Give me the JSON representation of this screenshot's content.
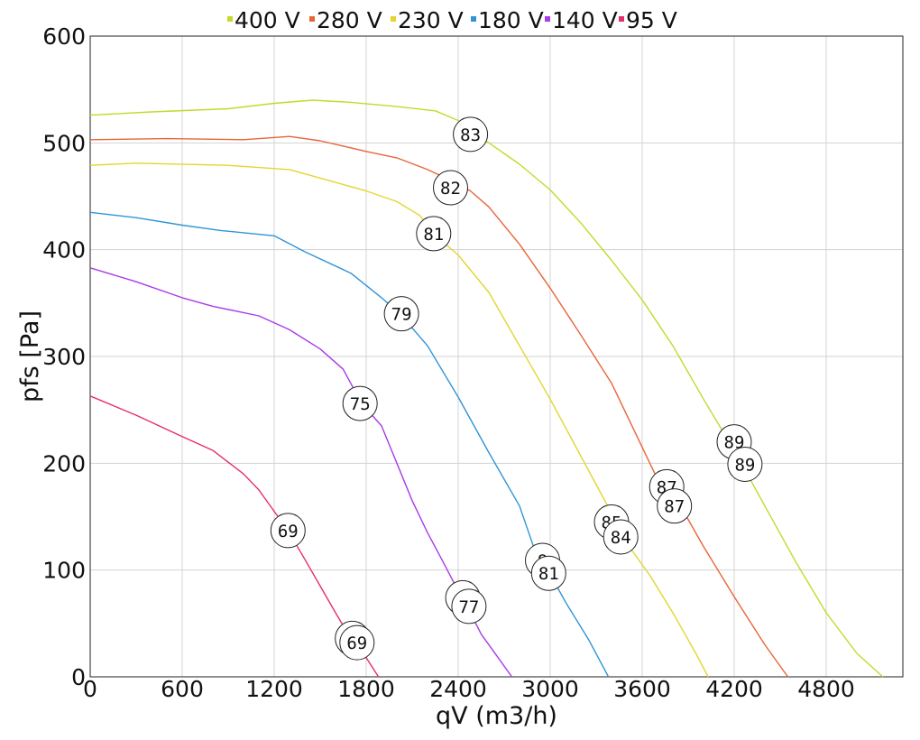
{
  "chart_data": {
    "type": "line",
    "title": "",
    "xlabel": "qV (m3/h)",
    "ylabel": "pfs [Pa]",
    "xlim": [
      0,
      5300
    ],
    "ylim": [
      0,
      600
    ],
    "x_ticks": [
      0,
      600,
      1200,
      1800,
      2400,
      3000,
      3600,
      4200,
      4800
    ],
    "y_ticks": [
      0,
      100,
      200,
      300,
      400,
      500,
      600
    ],
    "grid": true,
    "legend_position": "top",
    "series": [
      {
        "name": "400 V",
        "color": "#c5d92a",
        "points": [
          [
            0,
            526
          ],
          [
            400,
            529
          ],
          [
            900,
            532
          ],
          [
            1200,
            537
          ],
          [
            1450,
            540
          ],
          [
            1700,
            538
          ],
          [
            2000,
            534
          ],
          [
            2250,
            530
          ],
          [
            2400,
            521
          ],
          [
            2500,
            510
          ],
          [
            2600,
            500
          ],
          [
            2800,
            480
          ],
          [
            3000,
            456
          ],
          [
            3200,
            425
          ],
          [
            3400,
            390
          ],
          [
            3600,
            353
          ],
          [
            3800,
            310
          ],
          [
            4000,
            260
          ],
          [
            4200,
            212
          ],
          [
            4400,
            160
          ],
          [
            4600,
            108
          ],
          [
            4800,
            60
          ],
          [
            5000,
            22
          ],
          [
            5170,
            0
          ]
        ],
        "labels": [
          [
            2480,
            508,
            "83"
          ],
          [
            4200,
            220,
            "89"
          ],
          [
            4270,
            199,
            "89"
          ]
        ]
      },
      {
        "name": "280 V",
        "color": "#e8653a",
        "points": [
          [
            0,
            503
          ],
          [
            500,
            504
          ],
          [
            1000,
            503
          ],
          [
            1300,
            506
          ],
          [
            1500,
            502
          ],
          [
            1800,
            492
          ],
          [
            2000,
            486
          ],
          [
            2200,
            475
          ],
          [
            2350,
            465
          ],
          [
            2480,
            455
          ],
          [
            2600,
            440
          ],
          [
            2800,
            405
          ],
          [
            3000,
            364
          ],
          [
            3200,
            320
          ],
          [
            3400,
            275
          ],
          [
            3550,
            230
          ],
          [
            3700,
            185
          ],
          [
            3850,
            160
          ],
          [
            4000,
            122
          ],
          [
            4200,
            75
          ],
          [
            4400,
            30
          ],
          [
            4550,
            0
          ]
        ],
        "labels": [
          [
            2350,
            458,
            "82"
          ],
          [
            3760,
            178,
            "87"
          ],
          [
            3810,
            160,
            "87"
          ]
        ]
      },
      {
        "name": "230 V",
        "color": "#e3d62e",
        "points": [
          [
            0,
            479
          ],
          [
            300,
            481
          ],
          [
            900,
            479
          ],
          [
            1300,
            475
          ],
          [
            1600,
            463
          ],
          [
            1800,
            455
          ],
          [
            2000,
            445
          ],
          [
            2150,
            432
          ],
          [
            2240,
            415
          ],
          [
            2400,
            395
          ],
          [
            2600,
            360
          ],
          [
            2800,
            310
          ],
          [
            3000,
            260
          ],
          [
            3150,
            220
          ],
          [
            3300,
            180
          ],
          [
            3420,
            148
          ],
          [
            3500,
            125
          ],
          [
            3650,
            95
          ],
          [
            3800,
            60
          ],
          [
            3950,
            22
          ],
          [
            4030,
            0
          ]
        ],
        "labels": [
          [
            2240,
            415,
            "81"
          ],
          [
            3400,
            145,
            "85"
          ],
          [
            3460,
            131,
            "84"
          ]
        ]
      },
      {
        "name": "180 V",
        "color": "#2f95d6",
        "points": [
          [
            0,
            435
          ],
          [
            300,
            430
          ],
          [
            600,
            423
          ],
          [
            850,
            418
          ],
          [
            1200,
            413
          ],
          [
            1400,
            398
          ],
          [
            1700,
            378
          ],
          [
            1900,
            355
          ],
          [
            2020,
            340
          ],
          [
            2200,
            310
          ],
          [
            2400,
            262
          ],
          [
            2600,
            210
          ],
          [
            2800,
            160
          ],
          [
            2920,
            110
          ],
          [
            3000,
            96
          ],
          [
            3100,
            70
          ],
          [
            3250,
            35
          ],
          [
            3380,
            0
          ]
        ],
        "labels": [
          [
            2030,
            340,
            "79"
          ],
          [
            2950,
            109,
            "8"
          ],
          [
            2990,
            97,
            "81"
          ]
        ]
      },
      {
        "name": "140 V",
        "color": "#a93be8",
        "points": [
          [
            0,
            383
          ],
          [
            300,
            370
          ],
          [
            600,
            355
          ],
          [
            800,
            347
          ],
          [
            1100,
            338
          ],
          [
            1300,
            325
          ],
          [
            1500,
            307
          ],
          [
            1650,
            288
          ],
          [
            1770,
            256
          ],
          [
            1900,
            235
          ],
          [
            2000,
            200
          ],
          [
            2100,
            165
          ],
          [
            2200,
            135
          ],
          [
            2300,
            108
          ],
          [
            2420,
            75
          ],
          [
            2450,
            68
          ],
          [
            2550,
            40
          ],
          [
            2650,
            20
          ],
          [
            2750,
            0
          ]
        ],
        "labels": [
          [
            1760,
            256,
            "75"
          ],
          [
            2430,
            74,
            "7"
          ],
          [
            2470,
            66,
            "77"
          ]
        ]
      },
      {
        "name": "95 V",
        "color": "#e62e6a",
        "points": [
          [
            0,
            263
          ],
          [
            300,
            245
          ],
          [
            600,
            225
          ],
          [
            800,
            212
          ],
          [
            1000,
            190
          ],
          [
            1100,
            175
          ],
          [
            1200,
            155
          ],
          [
            1290,
            137
          ],
          [
            1400,
            110
          ],
          [
            1500,
            85
          ],
          [
            1600,
            60
          ],
          [
            1700,
            36
          ],
          [
            1740,
            32
          ],
          [
            1800,
            18
          ],
          [
            1880,
            0
          ]
        ],
        "labels": [
          [
            1290,
            137,
            "69"
          ],
          [
            1710,
            36,
            "6"
          ],
          [
            1740,
            32,
            "69"
          ]
        ]
      }
    ]
  }
}
